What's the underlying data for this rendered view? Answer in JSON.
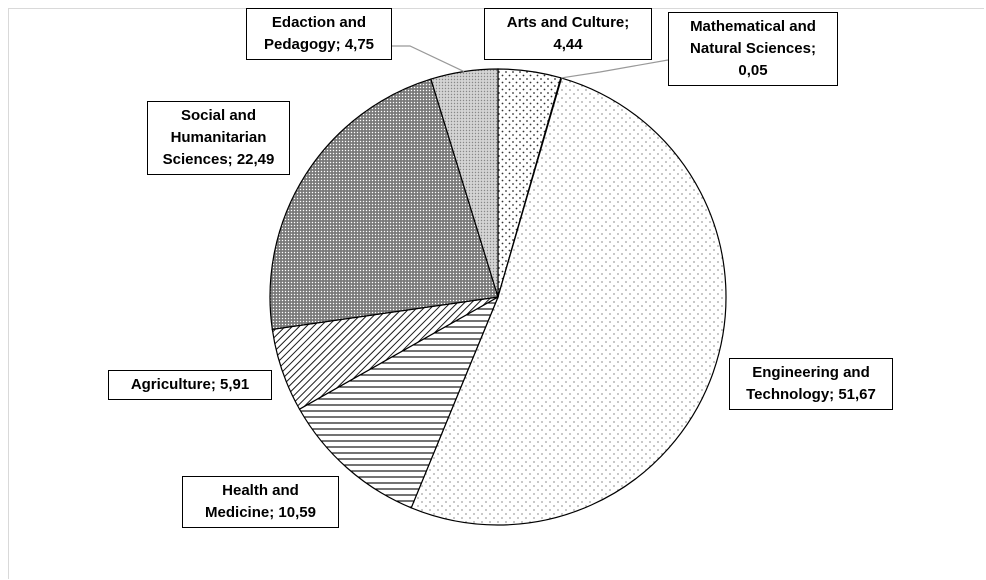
{
  "chart_data": {
    "type": "pie",
    "slices": [
      {
        "label": "Arts and Culture",
        "value": 4.44,
        "display": "4,44",
        "pattern": "dots-sparse"
      },
      {
        "label": "Mathematical and Natural Sciences",
        "value": 0.05,
        "display": "0,05",
        "pattern": "solid-white"
      },
      {
        "label": "Engineering and Technology",
        "value": 51.67,
        "display": "51,67",
        "pattern": "dots-fine"
      },
      {
        "label": "Health and Medicine",
        "value": 10.59,
        "display": "10,59",
        "pattern": "horizontal-lines"
      },
      {
        "label": "Agriculture",
        "value": 5.91,
        "display": "5,91",
        "pattern": "diagonal-lines"
      },
      {
        "label": "Social and Humanitarian Sciences",
        "value": 22.49,
        "display": "22,49",
        "pattern": "dense-cross"
      },
      {
        "label": "Edaction and Pedagogy",
        "value": 4.75,
        "display": "4,75",
        "pattern": "light-gray-dots"
      }
    ],
    "labels_text": [
      [
        "Arts and Culture;",
        "4,44"
      ],
      [
        "Mathematical and",
        "Natural Sciences;",
        "0,05"
      ],
      [
        "Engineering and",
        "Technology; 51,67"
      ],
      [
        "Health and",
        "Medicine; 10,59"
      ],
      [
        "Agriculture; 5,91"
      ],
      [
        "Social and",
        "Humanitarian",
        "Sciences; 22,49"
      ],
      [
        "Edaction and",
        "Pedagogy; 4,75"
      ]
    ],
    "start_angle": "12 o'clock, clockwise",
    "legend": "none"
  }
}
